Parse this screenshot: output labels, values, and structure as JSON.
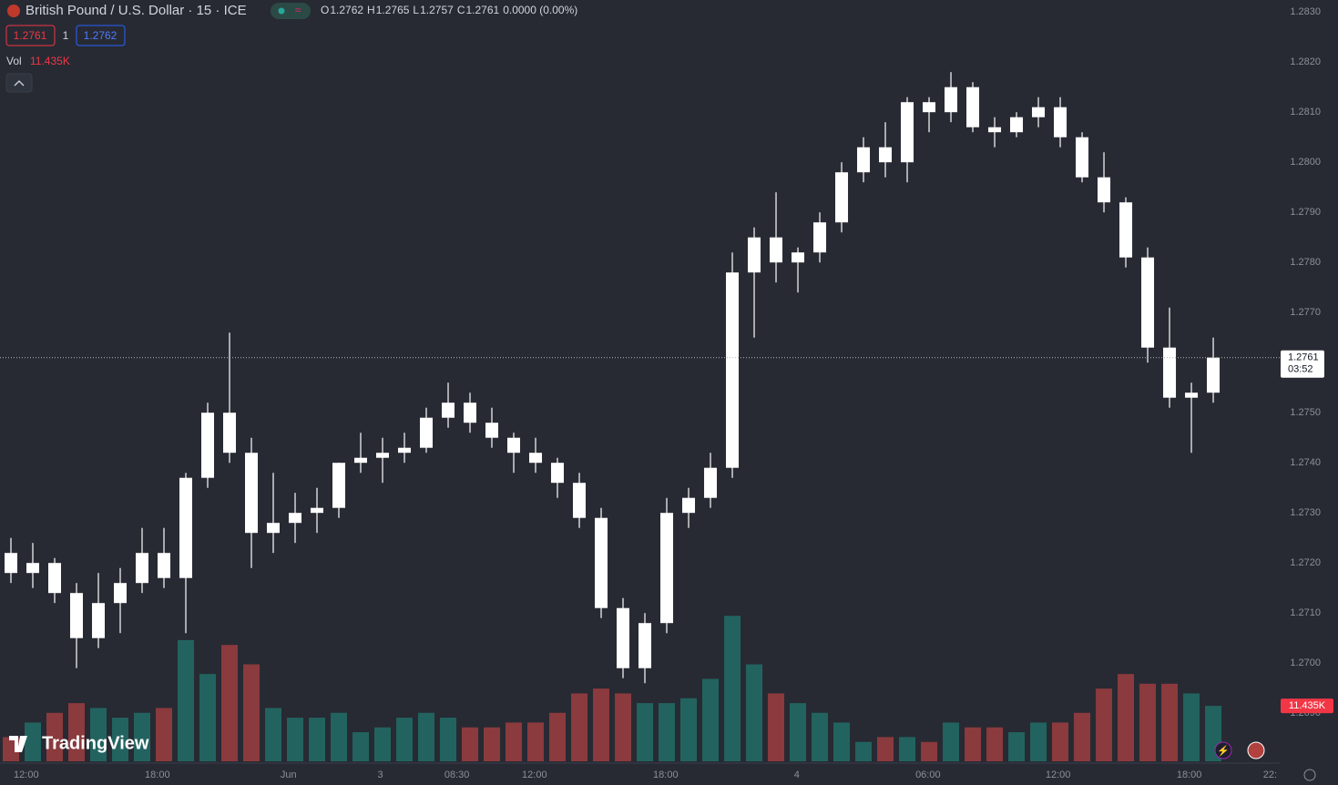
{
  "chart_data": {
    "type": "candlestick",
    "title": "British Pound / U.S. Dollar · 15 · ICE",
    "ohlc": [
      {
        "key": "O",
        "value": 1.2762
      },
      {
        "key": "H",
        "value": 1.2765
      },
      {
        "key": "L",
        "value": 1.2757
      },
      {
        "key": "C",
        "value": 1.2761
      }
    ],
    "change": "0.0000 (0.00%)",
    "bid": 1.2761,
    "spread": 1,
    "ask": 1.2762,
    "volume_title": "Vol",
    "volume_last_label": "11.435K",
    "brand": "TradingView",
    "last_price": {
      "value": 1.2761,
      "countdown": "03:52"
    },
    "up_color": "#ffffff",
    "down_color": "#ffffff",
    "vol_up_color": "#22635f",
    "vol_down_color": "#8b3a3d",
    "xlim": [
      0,
      58.54
    ],
    "ylim": [
      1.26804,
      1.28324
    ],
    "vlim": [
      0,
      40
    ],
    "yticks": [
      {
        "value": 1.283,
        "label": "1.2830"
      },
      {
        "value": 1.282,
        "label": "1.2820"
      },
      {
        "value": 1.281,
        "label": "1.2810"
      },
      {
        "value": 1.28,
        "label": "1.2800"
      },
      {
        "value": 1.279,
        "label": "1.2790"
      },
      {
        "value": 1.278,
        "label": "1.2780"
      },
      {
        "value": 1.277,
        "label": "1.2770"
      },
      {
        "value": 1.275,
        "label": "1.2750"
      },
      {
        "value": 1.274,
        "label": "1.2740"
      },
      {
        "value": 1.273,
        "label": "1.2730"
      },
      {
        "value": 1.272,
        "label": "1.2720"
      },
      {
        "value": 1.271,
        "label": "1.2710"
      },
      {
        "value": 1.27,
        "label": "1.2700"
      },
      {
        "value": 1.269,
        "label": "1.2690"
      }
    ],
    "xticks": [
      {
        "value": 1.2,
        "label": "12:00"
      },
      {
        "value": 7.2,
        "label": "18:00"
      },
      {
        "value": 13.2,
        "label": "Jun"
      },
      {
        "value": 17.4,
        "label": "3"
      },
      {
        "value": 20.9,
        "label": "08:30"
      },
      {
        "value": 24.45,
        "label": "12:00"
      },
      {
        "value": 30.45,
        "label": "18:00"
      },
      {
        "value": 36.45,
        "label": "4"
      },
      {
        "value": 42.45,
        "label": "06:00"
      },
      {
        "value": 48.4,
        "label": "12:00"
      },
      {
        "value": 54.4,
        "label": "18:00"
      },
      {
        "value": 58.1,
        "label": "22:"
      }
    ],
    "open": [
      1.2722,
      1.2718,
      1.272,
      1.2714,
      1.2705,
      1.2712,
      1.2716,
      1.2722,
      1.2717,
      1.2737,
      1.275,
      1.2742,
      1.2726,
      1.2728,
      1.273,
      1.2731,
      1.274,
      1.2741,
      1.2742,
      1.2743,
      1.2749,
      1.2752,
      1.2748,
      1.2745,
      1.2742,
      1.274,
      1.2736,
      1.2729,
      1.2711,
      1.2699,
      1.2708,
      1.273,
      1.2733,
      1.2739,
      1.2778,
      1.2785,
      1.278,
      1.2782,
      1.2788,
      1.2798,
      1.2803,
      1.28,
      1.2812,
      1.281,
      1.2815,
      1.2807,
      1.2806,
      1.2809,
      1.2811,
      1.2805,
      1.2797,
      1.2792,
      1.2781,
      1.2763,
      1.2753,
      1.2754
    ],
    "high": [
      1.2725,
      1.2724,
      1.2721,
      1.2716,
      1.2718,
      1.2719,
      1.2727,
      1.2727,
      1.2738,
      1.2752,
      1.2766,
      1.2745,
      1.2738,
      1.2734,
      1.2735,
      1.274,
      1.2746,
      1.2745,
      1.2746,
      1.2751,
      1.2756,
      1.2754,
      1.2751,
      1.2746,
      1.2745,
      1.2741,
      1.2738,
      1.2731,
      1.2713,
      1.271,
      1.2733,
      1.2735,
      1.2742,
      1.2782,
      1.2787,
      1.2794,
      1.2783,
      1.279,
      1.28,
      1.2805,
      1.2808,
      1.2813,
      1.2813,
      1.2818,
      1.2816,
      1.2809,
      1.281,
      1.2813,
      1.2813,
      1.2806,
      1.2802,
      1.2793,
      1.2783,
      1.2771,
      1.2756,
      1.2765
    ],
    "low": [
      1.2716,
      1.2715,
      1.2712,
      1.2699,
      1.2703,
      1.2706,
      1.2714,
      1.2715,
      1.2706,
      1.2735,
      1.274,
      1.2719,
      1.2722,
      1.2724,
      1.2726,
      1.2729,
      1.2738,
      1.2736,
      1.274,
      1.2742,
      1.2747,
      1.2746,
      1.2743,
      1.2738,
      1.2738,
      1.2733,
      1.2727,
      1.2709,
      1.2697,
      1.2696,
      1.2706,
      1.2727,
      1.2731,
      1.2737,
      1.2765,
      1.2776,
      1.2774,
      1.278,
      1.2786,
      1.2796,
      1.2797,
      1.2796,
      1.2806,
      1.2808,
      1.2806,
      1.2803,
      1.2805,
      1.2807,
      1.2803,
      1.2796,
      1.279,
      1.2779,
      1.276,
      1.2751,
      1.2742,
      1.2752
    ],
    "close": [
      1.2718,
      1.272,
      1.2714,
      1.2705,
      1.2712,
      1.2716,
      1.2722,
      1.2717,
      1.2737,
      1.275,
      1.2742,
      1.2726,
      1.2728,
      1.273,
      1.2731,
      1.274,
      1.2741,
      1.2742,
      1.2743,
      1.2749,
      1.2752,
      1.2748,
      1.2745,
      1.2742,
      1.274,
      1.2736,
      1.2729,
      1.2711,
      1.2699,
      1.2708,
      1.273,
      1.2733,
      1.2739,
      1.2778,
      1.2785,
      1.278,
      1.2782,
      1.2788,
      1.2798,
      1.2803,
      1.28,
      1.2812,
      1.281,
      1.2815,
      1.2807,
      1.2806,
      1.2809,
      1.2811,
      1.2805,
      1.2797,
      1.2792,
      1.2781,
      1.2763,
      1.2753,
      1.2754,
      1.2761
    ],
    "volume": [
      5,
      8,
      10,
      12,
      11,
      9,
      10,
      11,
      25,
      18,
      24,
      20,
      11,
      9,
      9,
      10,
      6,
      7,
      9,
      10,
      9,
      7,
      7,
      8,
      8,
      10,
      14,
      15,
      14,
      12,
      12,
      13,
      17,
      30,
      20,
      14,
      12,
      10,
      8,
      4,
      5,
      5,
      4,
      8,
      7,
      7,
      6,
      8,
      8,
      10,
      15,
      18,
      16,
      16,
      14,
      11.435
    ]
  }
}
